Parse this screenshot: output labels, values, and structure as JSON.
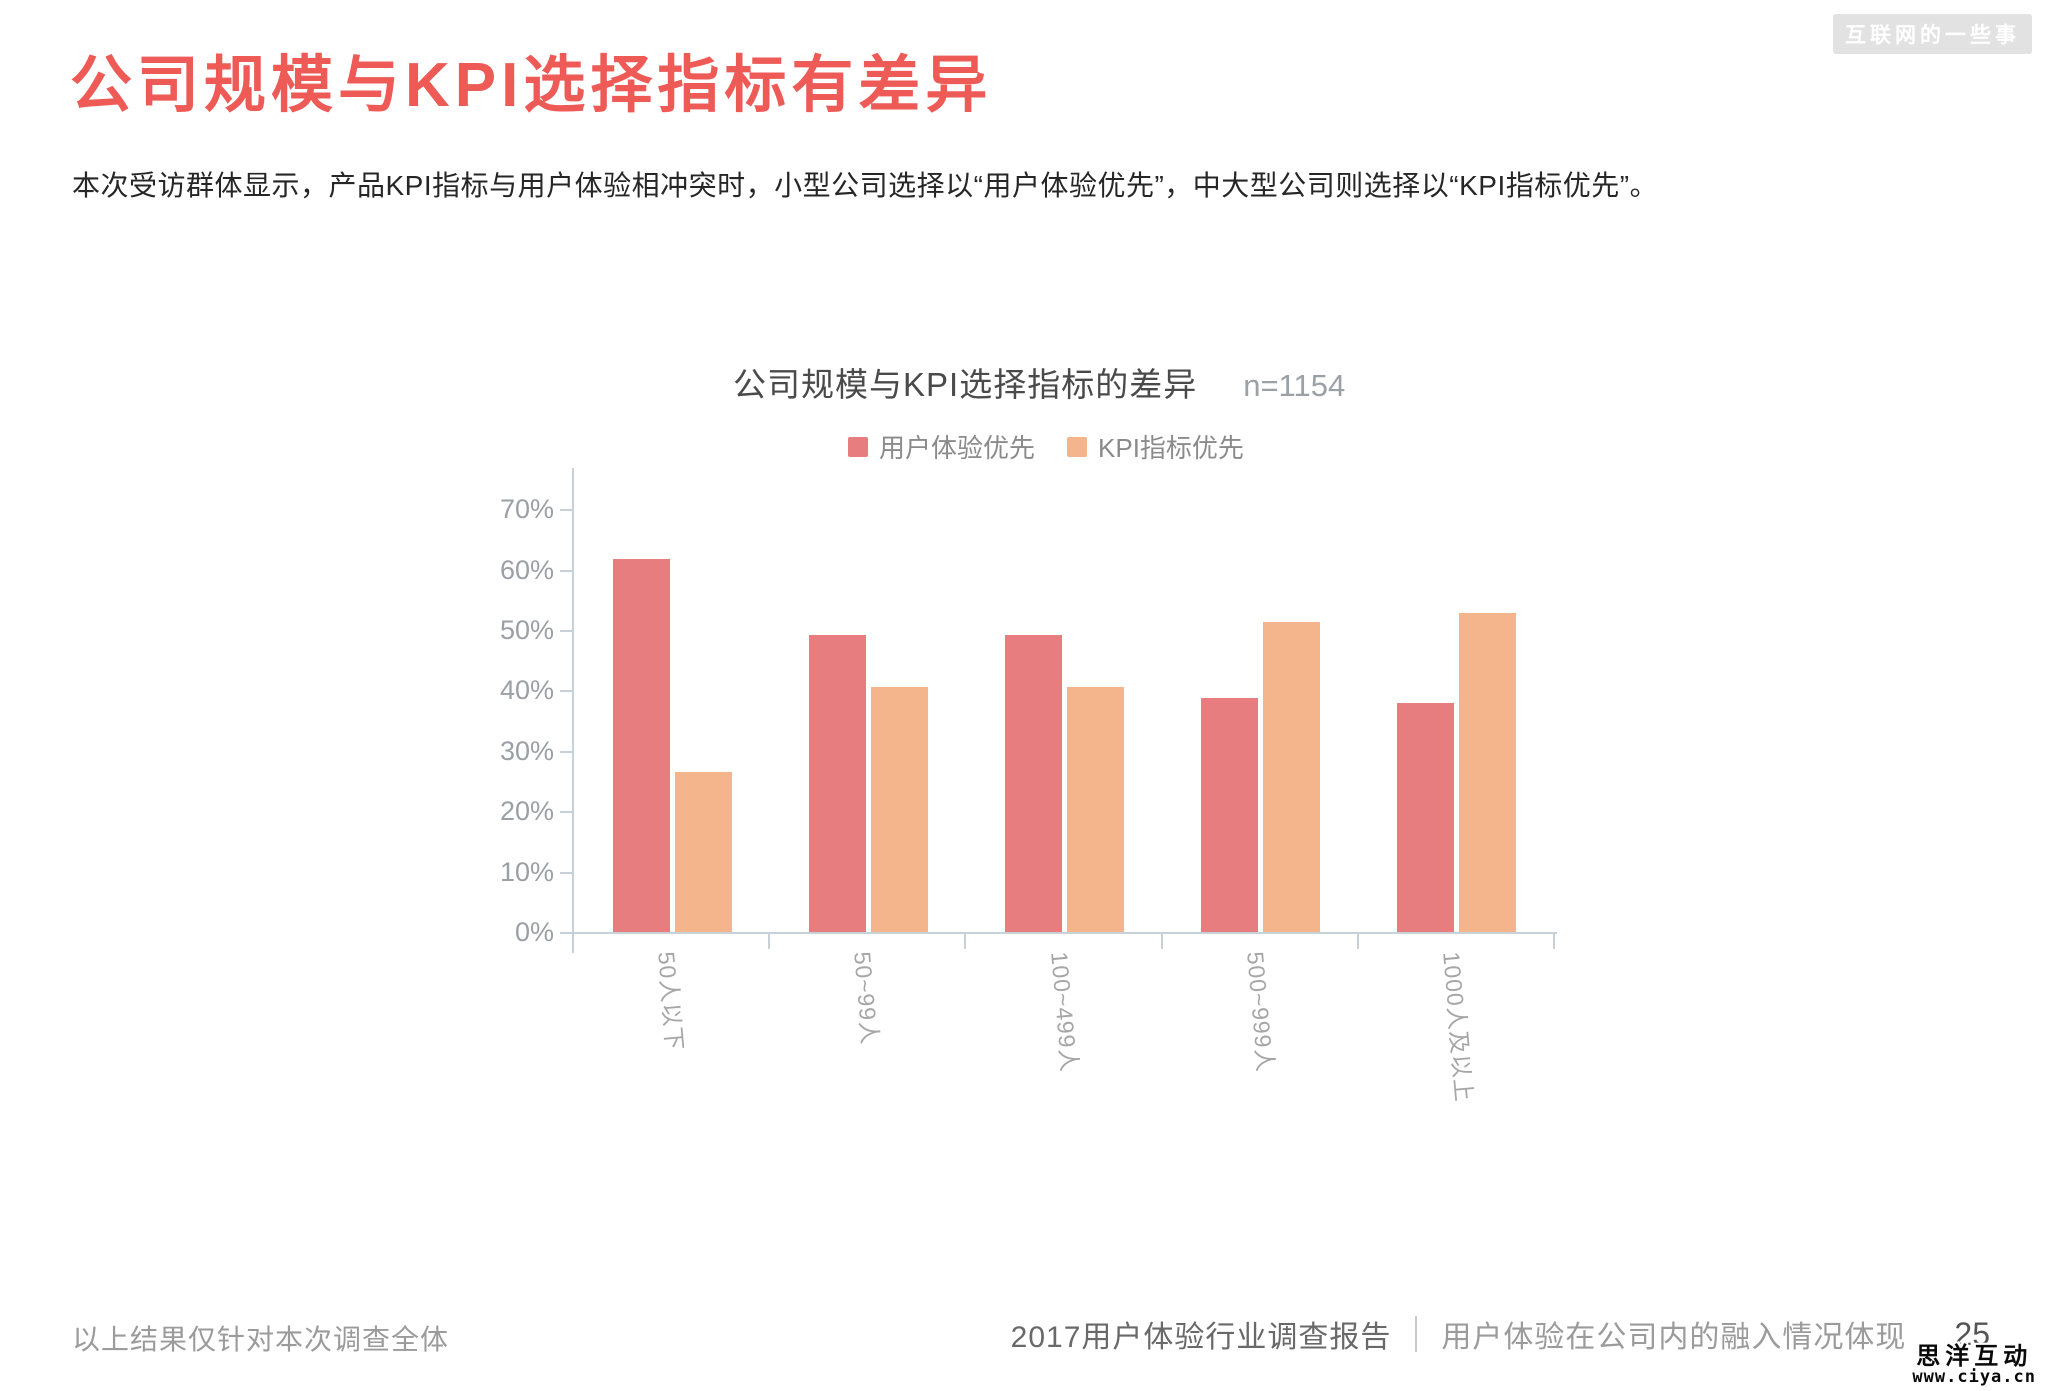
{
  "page": {
    "title": "公司规模与KPI选择指标有差异",
    "subtitle": "本次受访群体显示，产品KPI指标与用户体验相冲突时，小型公司选择以“用户体验优先”，中大型公司则选择以“KPI指标优先”。",
    "footer_left": "以上结果仅针对本次调查全体",
    "footer_report": "2017用户体验行业调查报告",
    "footer_section": "用户体验在公司内的融入情况体现",
    "page_number": "25",
    "watermark_top": "互联网的一些事",
    "watermark_brand": "思洋互动",
    "watermark_url": "www.ciya.cn"
  },
  "colors": {
    "title_accent": "#ee5b57",
    "series_ux": "#e87d80",
    "series_kpi": "#f4b48c",
    "axis": "#c9d1d8",
    "tick_label": "#9aa0a5"
  },
  "chart_data": {
    "type": "bar",
    "title": "公司规模与KPI选择指标的差异",
    "sample_label": "n=1154",
    "categories": [
      "50人以下",
      "50~99人",
      "100~499人",
      "500~999人",
      "1000人及以上"
    ],
    "series": [
      {
        "name": "用户体验优先",
        "color": "#e87d80",
        "values": [
          61.8,
          49.2,
          49.2,
          38.8,
          37.9
        ]
      },
      {
        "name": "KPI指标优先",
        "color": "#f4b48c",
        "values": [
          26.5,
          40.5,
          40.5,
          51.4,
          52.8
        ]
      }
    ],
    "ylabel": "",
    "xlabel": "",
    "ylim": [
      0,
      70
    ],
    "ytick_step": 10,
    "yticks": [
      "0%",
      "10%",
      "20%",
      "30%",
      "40%",
      "50%",
      "60%",
      "70%"
    ],
    "grid": false,
    "legend_position": "top"
  }
}
